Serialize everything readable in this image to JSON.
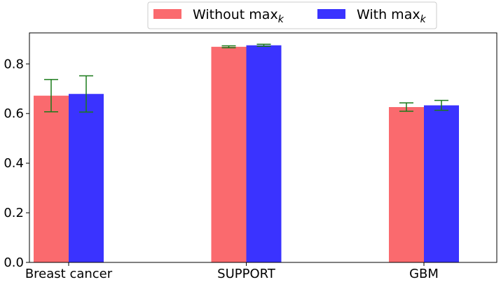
{
  "chart_data": {
    "type": "bar",
    "categories": [
      "Breast cancer",
      "SUPPORT",
      "GBM"
    ],
    "series": [
      {
        "name": "Without max",
        "name_subscript": "k",
        "color": "#fa6a6e",
        "values": [
          0.672,
          0.869,
          0.626
        ],
        "error": [
          0.065,
          0.004,
          0.017
        ]
      },
      {
        "name": "With max",
        "name_subscript": "k",
        "color": "#3a33ff",
        "values": [
          0.679,
          0.875,
          0.633
        ],
        "error": [
          0.073,
          0.004,
          0.02
        ]
      }
    ],
    "errorbar_color": "#1a7a1a",
    "ylim": [
      0,
      0.925
    ],
    "yticks": [
      0.0,
      0.2,
      0.4,
      0.6,
      0.8
    ],
    "ytick_labels": [
      "0.0",
      "0.2",
      "0.4",
      "0.6",
      "0.8"
    ],
    "xlabel": "",
    "ylabel": "",
    "title": "",
    "grid": false,
    "legend_placement": "top-center, above plot"
  }
}
